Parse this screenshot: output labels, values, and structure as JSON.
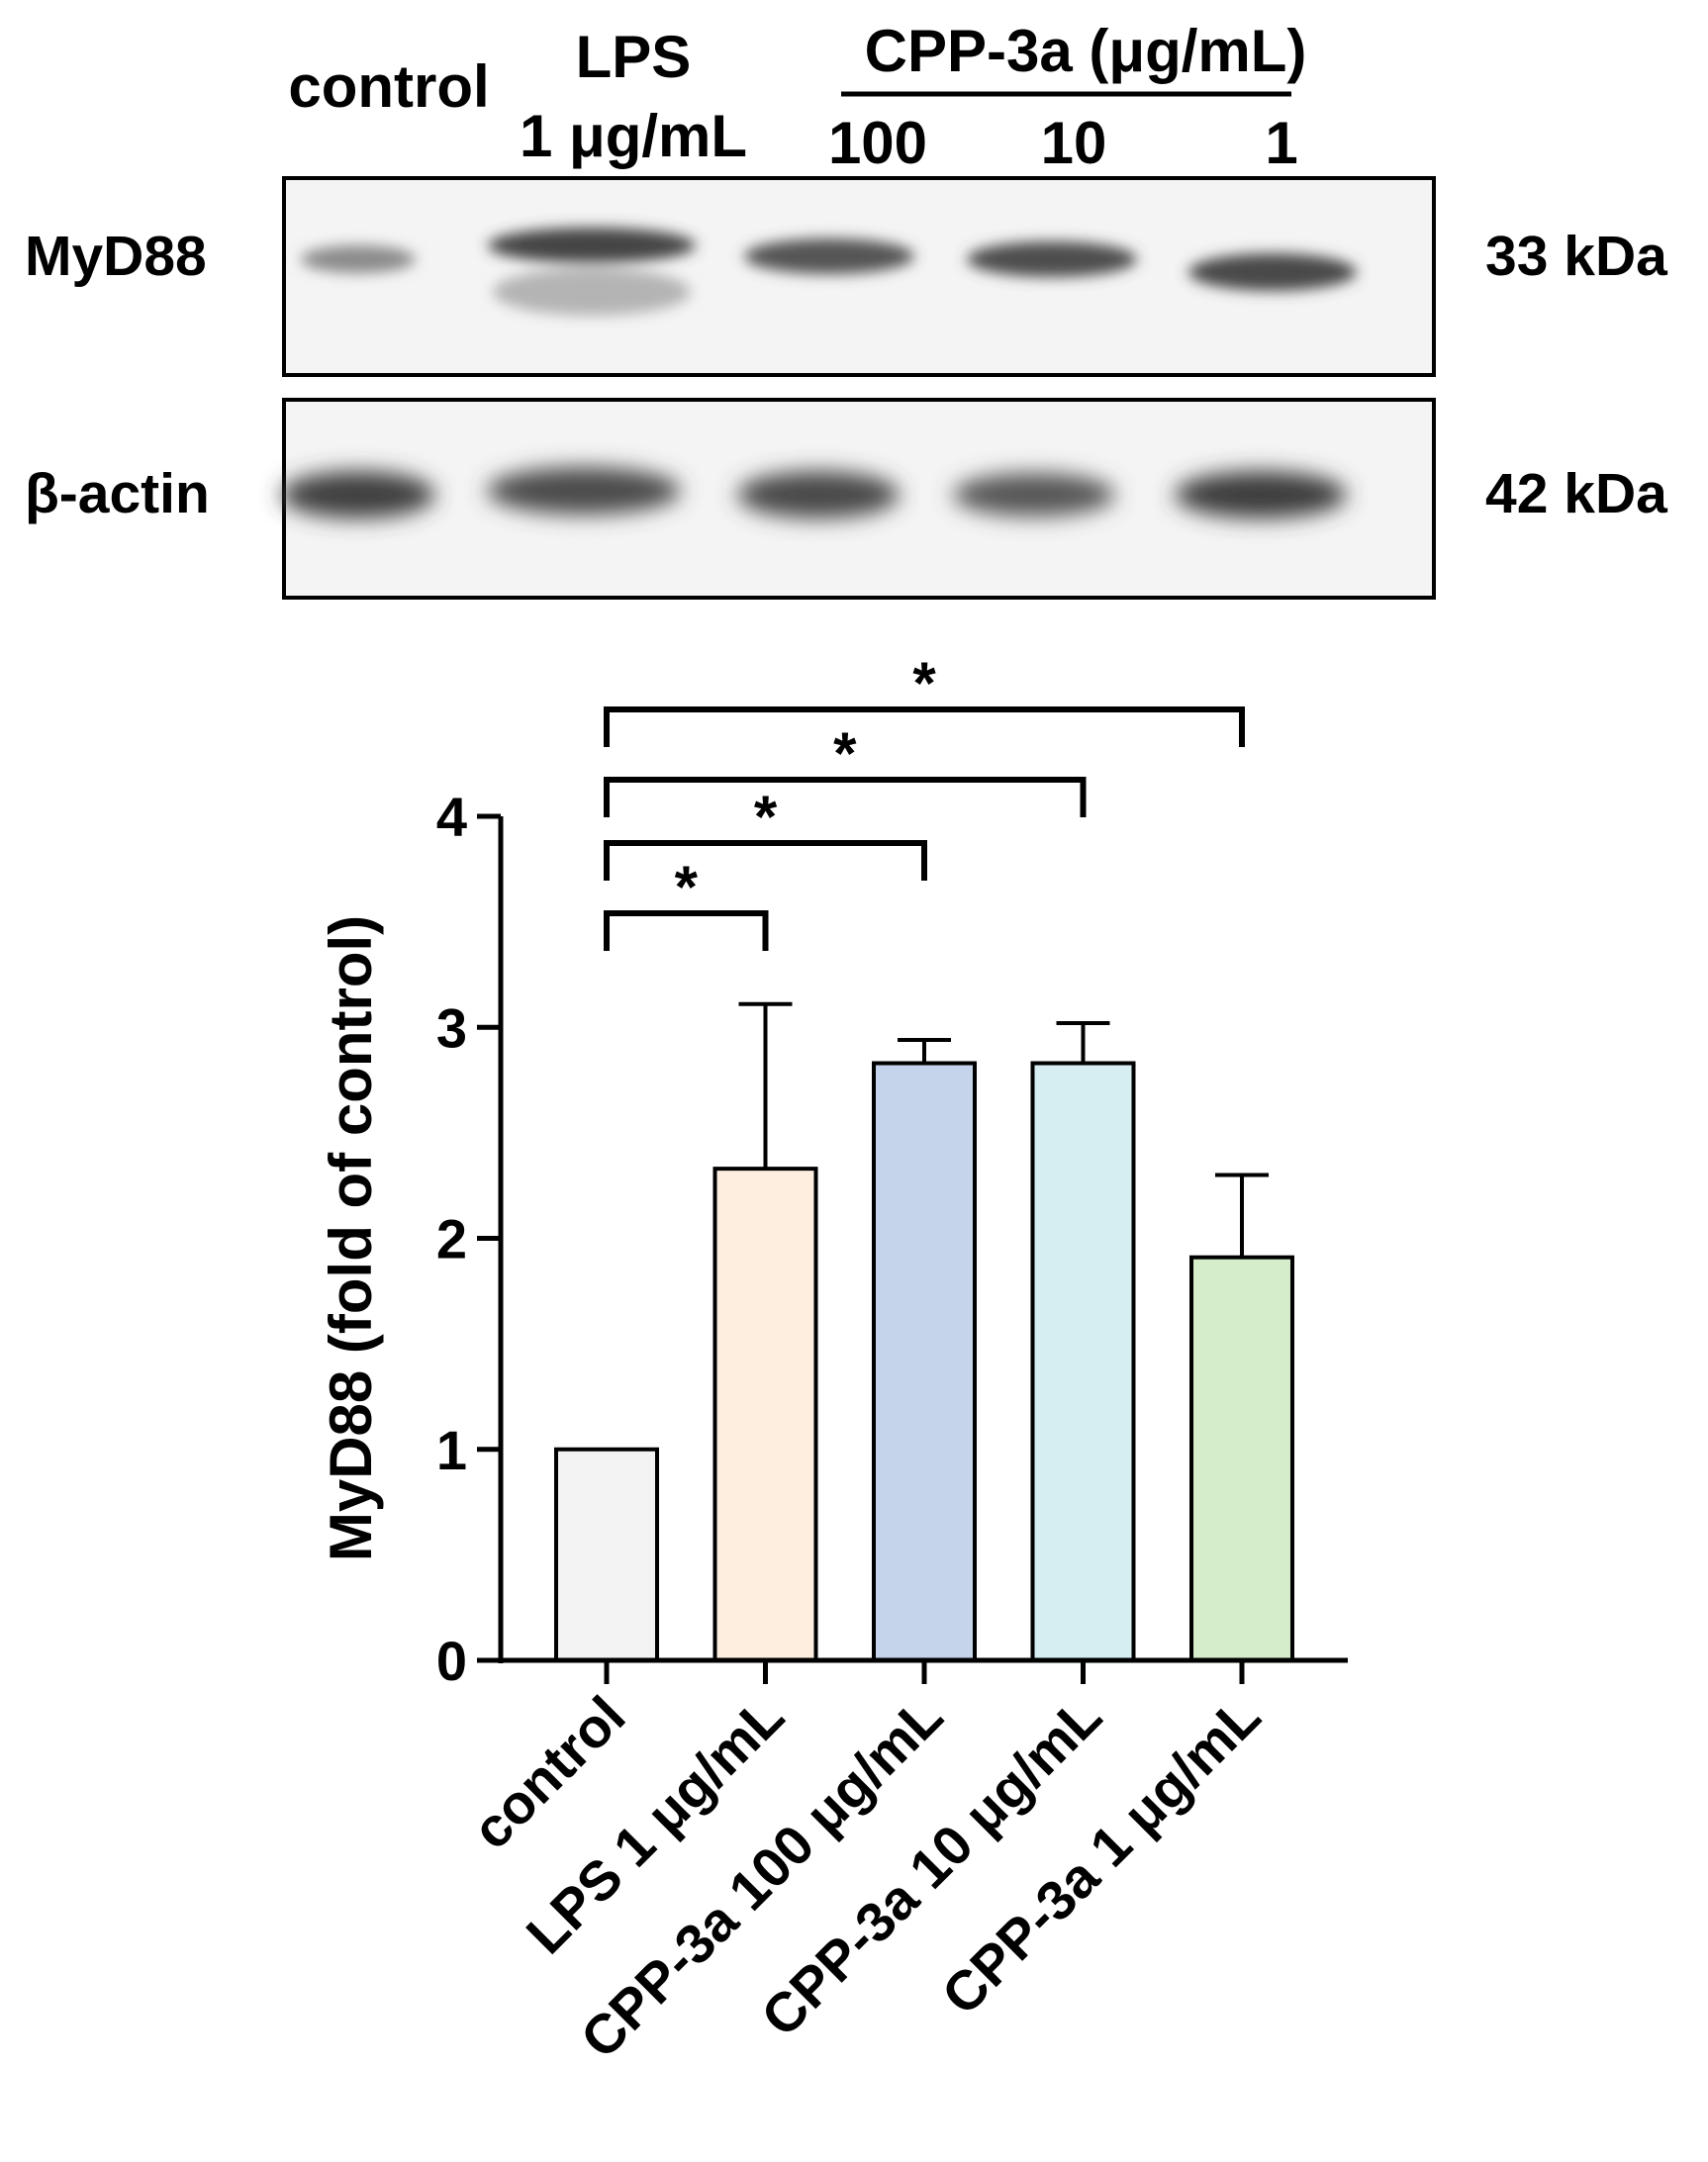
{
  "blot": {
    "lane_headers": {
      "control": "control",
      "lps_line1": "LPS",
      "lps_line2": "1 μg/mL",
      "cpp_group": "CPP-3a (μg/mL)",
      "cpp_doses": [
        "100",
        "10",
        "1"
      ]
    },
    "rows": [
      {
        "label": "MyD88",
        "size": "33 kDa"
      },
      {
        "label": "β-actin",
        "size": "42 kDa"
      }
    ]
  },
  "chart_data": {
    "type": "bar",
    "categories": [
      "control",
      "LPS 1 μg/mL",
      "CPP-3a 100 μg/mL",
      "CPP-3a 10 μg/mL",
      "CPP-3a 1 μg/mL"
    ],
    "values": [
      1.0,
      2.33,
      2.83,
      2.83,
      1.91
    ],
    "errors": [
      0.0,
      0.78,
      0.11,
      0.19,
      0.39
    ],
    "colors": [
      "#f3f3f3",
      "#fdeee0",
      "#c5d4ea",
      "#d6eef2",
      "#d6edcc"
    ],
    "ylabel": "MyD88 (fold of control)",
    "xlabel": "",
    "ylim": [
      0,
      4
    ],
    "yticks": [
      0,
      1,
      2,
      3,
      4
    ],
    "grid": false,
    "significance": [
      {
        "from": 0,
        "to": 1,
        "label": "*"
      },
      {
        "from": 0,
        "to": 2,
        "label": "*"
      },
      {
        "from": 0,
        "to": 3,
        "label": "*"
      },
      {
        "from": 0,
        "to": 4,
        "label": "*"
      }
    ]
  }
}
